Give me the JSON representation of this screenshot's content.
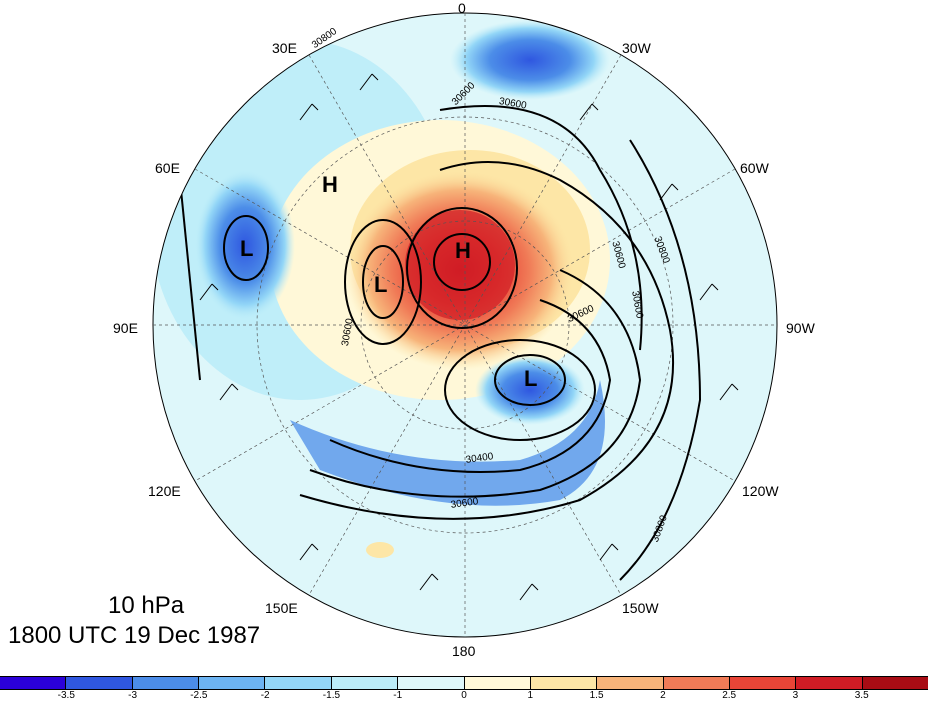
{
  "longitude_labels": [
    {
      "text": "0",
      "pos": "top"
    },
    {
      "text": "30E",
      "pos": "upper-left"
    },
    {
      "text": "30W",
      "pos": "upper-right"
    },
    {
      "text": "60E",
      "pos": "left-upper"
    },
    {
      "text": "60W",
      "pos": "right-upper"
    },
    {
      "text": "90E",
      "pos": "left"
    },
    {
      "text": "90W",
      "pos": "right"
    },
    {
      "text": "120E",
      "pos": "left-lower"
    },
    {
      "text": "120W",
      "pos": "right-lower"
    },
    {
      "text": "150E",
      "pos": "lower-left"
    },
    {
      "text": "150W",
      "pos": "lower-right"
    },
    {
      "text": "180",
      "pos": "bottom"
    }
  ],
  "pressure_centers": [
    {
      "label": "H",
      "where": "north of 60E, upper left"
    },
    {
      "label": "L",
      "where": "60E-90E sector"
    },
    {
      "label": "L",
      "where": "near pole, toward 90E"
    },
    {
      "label": "H",
      "where": "near pole"
    },
    {
      "label": "L",
      "where": "between 180 and 150W, near pole"
    }
  ],
  "contour_labels": [
    "30800",
    "30600",
    "30600",
    "30800",
    "30600",
    "30600",
    "30400",
    "30600",
    "30800",
    "30600",
    "30600"
  ],
  "caption": {
    "level": "10 hPa",
    "time": "1800 UTC 19 Dec 1987"
  },
  "colorbar": {
    "colors": [
      "#2b00d9",
      "#2f57e0",
      "#4c8de8",
      "#6db4f2",
      "#93d6f7",
      "#bbecf8",
      "#def7fa",
      "#fff8d8",
      "#fde6a6",
      "#f7b47a",
      "#f07b57",
      "#e84537",
      "#d01c25",
      "#a80c14"
    ],
    "tick_labels": [
      "-3.5",
      "-3",
      "-2.5",
      "-2",
      "-1.5",
      "-1",
      "0",
      "1",
      "1.5",
      "2",
      "2.5",
      "3",
      "3.5"
    ]
  }
}
